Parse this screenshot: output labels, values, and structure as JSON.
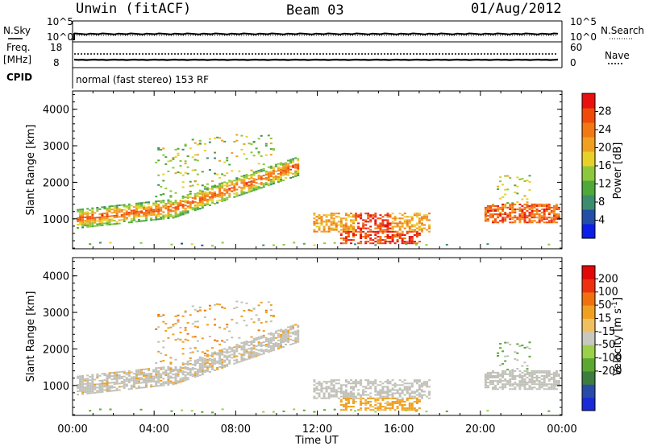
{
  "header": {
    "station": "Unwin (fitACF)",
    "beam": "Beam 03",
    "date": "01/Aug/2012"
  },
  "status_panel": {
    "nsky_label": "N.Sky",
    "nsearch_label": "N.Search",
    "noise_ticks": [
      "10^5",
      "10^0"
    ],
    "freq_label_line1": "Freq.",
    "freq_label_line2": "[MHz]",
    "freq_ticks": [
      "18",
      "8"
    ],
    "nave_label": "Nave",
    "nave_ticks": [
      "60",
      "0"
    ],
    "cpid_label": "CPID",
    "cpid_text": "normal (fast stereo) 153 RF"
  },
  "colors": {
    "power_scale": [
      "#0a1ee6",
      "#234ea8",
      "#3c8c6e",
      "#4fa83a",
      "#8cc83c",
      "#e8d02a",
      "#f0a020",
      "#f27814",
      "#f04a0a",
      "#e81010"
    ],
    "velocity_scale": [
      "#1a2ad8",
      "#2a4aa8",
      "#3c7c3c",
      "#5aa832",
      "#9ad04a",
      "#c8c8c0",
      "#f0c060",
      "#f0a020",
      "#f07010",
      "#ee3010",
      "#e00808"
    ],
    "ground_scatter": "#c0c0b8"
  },
  "chart_data": [
    {
      "type": "heatmap",
      "name": "Power",
      "x_ticks": [
        "00:00",
        "04:00",
        "08:00",
        "12:00",
        "16:00",
        "20:00",
        "00:00"
      ],
      "xlim_hours": [
        0,
        24
      ],
      "ylabel": "Slant Range [km]",
      "y_ticks": [
        1000,
        2000,
        3000,
        4000
      ],
      "ylim": [
        180,
        4500
      ],
      "colorbar": {
        "label": "Power [dB]",
        "ticks": [
          4,
          8,
          12,
          16,
          20,
          24,
          28
        ],
        "range": [
          0,
          32
        ]
      },
      "regions": [
        {
          "t0": 0.2,
          "t1": 11.0,
          "r_center": "ramp",
          "note": "main band rising 1000->2400 km"
        },
        {
          "t0": 11.8,
          "t1": 17.5,
          "r_center": 900,
          "note": "evening band"
        },
        {
          "t0": 13.8,
          "t1": 15.6,
          "r_center": 650,
          "note": "strong echoes"
        },
        {
          "t0": 20.2,
          "t1": 24.0,
          "r_center": 1150,
          "note": "late band"
        }
      ]
    },
    {
      "type": "heatmap",
      "name": "Velocity",
      "x_ticks": [
        "00:00",
        "04:00",
        "08:00",
        "12:00",
        "16:00",
        "20:00",
        "00:00"
      ],
      "xlim_hours": [
        0,
        24
      ],
      "xlabel": "Time UT",
      "ylabel": "Slant Range [km]",
      "y_ticks": [
        1000,
        2000,
        3000,
        4000
      ],
      "ylim": [
        180,
        4500
      ],
      "colorbar": {
        "label": "Velocity [m s",
        "label_sup": "-1",
        "label_end": "]",
        "ticks": [
          "200",
          "100",
          "50",
          "15",
          "-15",
          "-50",
          "-100",
          "-200"
        ],
        "range": [
          -250,
          250
        ]
      }
    }
  ]
}
